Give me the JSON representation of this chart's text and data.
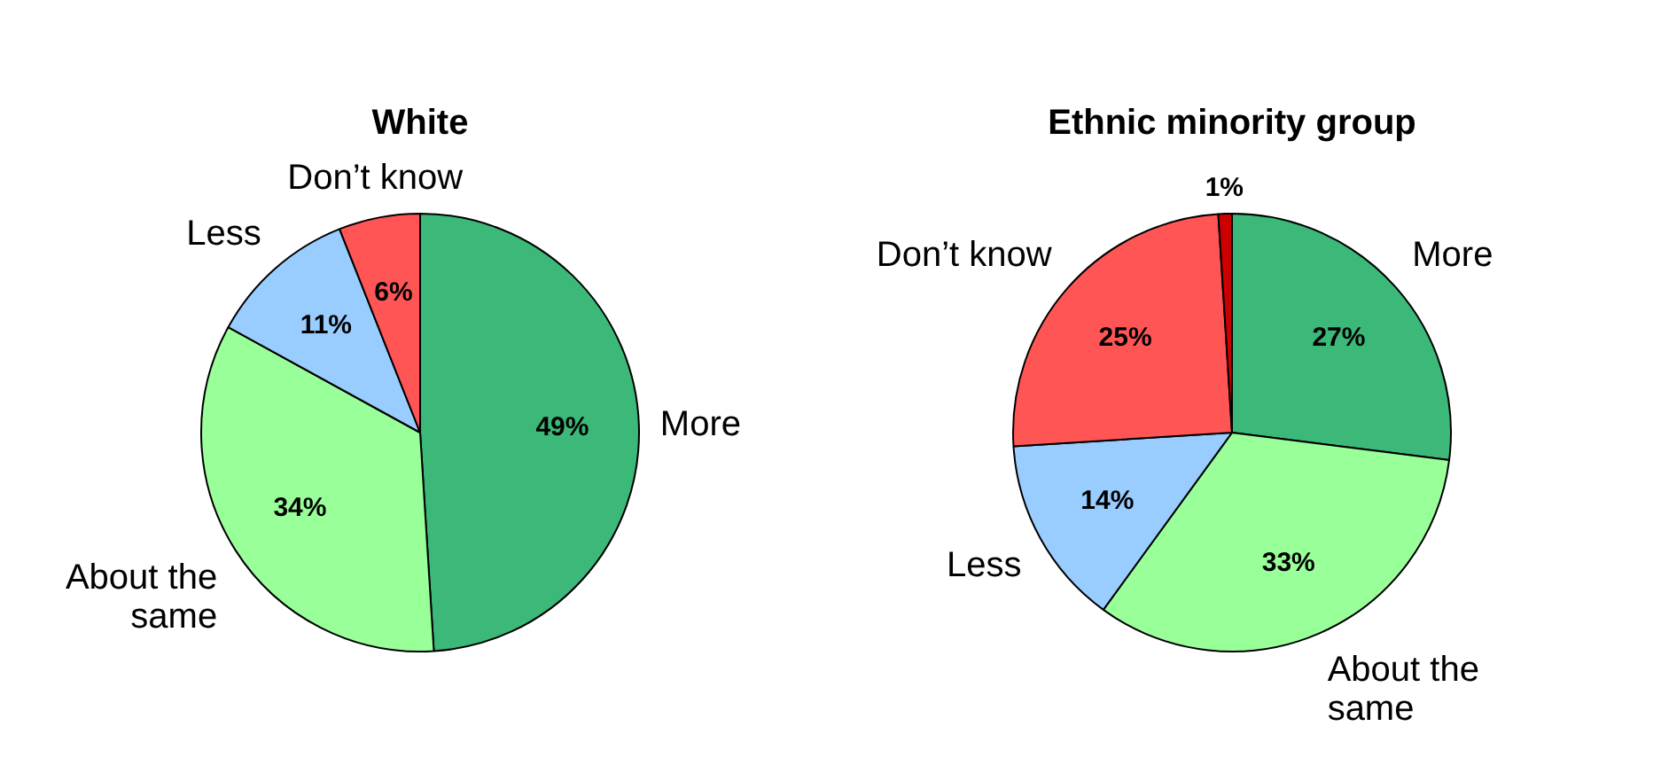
{
  "chart_data": [
    {
      "type": "pie",
      "title": "White",
      "categories": [
        "More",
        "About the same",
        "Less",
        "Don’t know"
      ],
      "values": [
        49,
        34,
        11,
        6
      ],
      "colors": [
        "#3cb878",
        "#99ff99",
        "#99ccff",
        "#ff5555"
      ],
      "value_labels": [
        "49%",
        "34%",
        "11%",
        "6%"
      ],
      "legend": false
    },
    {
      "type": "pie",
      "title": "Ethnic minority group",
      "categories": [
        "More",
        "About the same",
        "Less",
        "Don’t know",
        null
      ],
      "values": [
        27,
        33,
        14,
        25,
        1
      ],
      "colors": [
        "#3cb878",
        "#99ff99",
        "#99ccff",
        "#ff5555",
        "#cc0000"
      ],
      "value_labels": [
        "27%",
        "33%",
        "14%",
        "25%",
        "1%"
      ],
      "legend": false
    }
  ]
}
